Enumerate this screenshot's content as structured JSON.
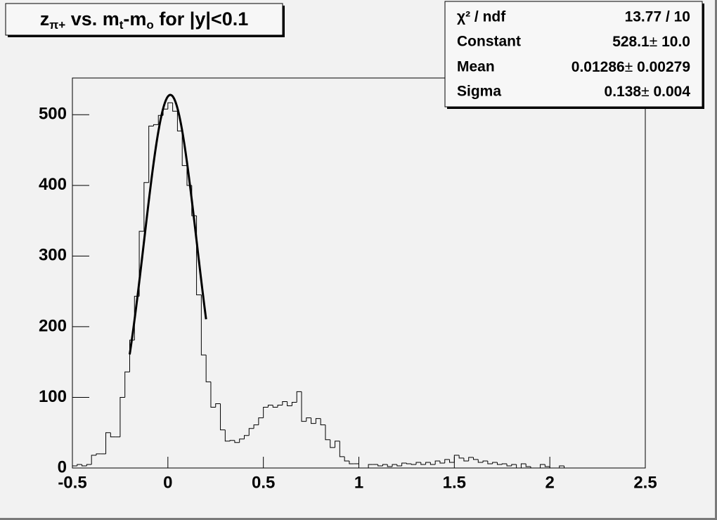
{
  "chart_data": {
    "type": "histogram",
    "title_parts": [
      {
        "text": "z"
      },
      {
        "text": "π+",
        "sub": true
      },
      {
        "text": " vs. m"
      },
      {
        "text": "t",
        "sub": true
      },
      {
        "text": "-m"
      },
      {
        "text": "o",
        "sub": true
      },
      {
        "text": " for |y|<0.1"
      }
    ],
    "bins": [
      -0.5,
      -0.475,
      -0.45,
      -0.425,
      -0.4,
      -0.375,
      -0.35,
      -0.325,
      -0.3,
      -0.275,
      -0.25,
      -0.225,
      -0.2,
      -0.175,
      -0.15,
      -0.125,
      -0.1,
      -0.075,
      -0.05,
      -0.025,
      0,
      0.025,
      0.05,
      0.075,
      0.1,
      0.125,
      0.15,
      0.175,
      0.2,
      0.225,
      0.25,
      0.275,
      0.3,
      0.325,
      0.35,
      0.375,
      0.4,
      0.425,
      0.45,
      0.475,
      0.5,
      0.525,
      0.55,
      0.575,
      0.6,
      0.625,
      0.65,
      0.675,
      0.7,
      0.725,
      0.75,
      0.775,
      0.8,
      0.825,
      0.85,
      0.875,
      0.9,
      0.925,
      0.95,
      0.975,
      1,
      1.025,
      1.05,
      1.075,
      1.1,
      1.125,
      1.15,
      1.175,
      1.2,
      1.225,
      1.25,
      1.275,
      1.3,
      1.325,
      1.35,
      1.375,
      1.4,
      1.425,
      1.45,
      1.475,
      1.5,
      1.525,
      1.55,
      1.575,
      1.6,
      1.625,
      1.65,
      1.675,
      1.7,
      1.725,
      1.75,
      1.775,
      1.8,
      1.825,
      1.85,
      1.875,
      1.9,
      1.925,
      1.95,
      1.975,
      2,
      2.025,
      2.05,
      2.075,
      2.1,
      2.125,
      2.15,
      2.175,
      2.2,
      2.225,
      2.25,
      2.275,
      2.3,
      2.325,
      2.35,
      2.375,
      2.4,
      2.425,
      2.45,
      2.475,
      2.5
    ],
    "values": [
      3,
      5,
      3,
      5,
      18,
      20,
      20,
      50,
      44,
      44,
      100,
      136,
      181,
      243,
      335,
      404,
      484,
      486,
      499,
      508,
      517,
      505,
      477,
      428,
      400,
      357,
      245,
      160,
      122,
      86,
      91,
      54,
      38,
      39,
      36,
      41,
      46,
      56,
      61,
      71,
      86,
      89,
      86,
      89,
      94,
      88,
      93,
      108,
      66,
      71,
      63,
      70,
      61,
      40,
      29,
      38,
      16,
      10,
      6,
      6,
      0,
      0,
      5,
      5,
      3,
      5,
      2,
      5,
      3,
      7,
      6,
      5,
      8,
      5,
      8,
      5,
      10,
      7,
      12,
      8,
      18,
      14,
      10,
      15,
      12,
      8,
      10,
      6,
      8,
      5,
      6,
      3,
      5,
      0,
      6,
      2,
      0,
      0,
      5,
      2,
      0,
      0,
      3,
      0,
      0,
      0,
      0,
      0,
      0,
      0,
      0,
      0,
      0,
      0,
      0,
      0,
      0,
      0,
      0,
      0
    ],
    "color": "#000000",
    "xlim": [
      -0.5,
      2.5
    ],
    "xticks": [
      -0.5,
      0,
      0.5,
      1,
      1.5,
      2,
      2.5
    ],
    "ylim": [
      0,
      552
    ],
    "yticks": [
      0,
      100,
      200,
      300,
      400,
      500
    ],
    "fit": {
      "range": [
        -0.2,
        0.2
      ],
      "color": "#000000",
      "pm": "±",
      "chi2": {
        "label": "χ² / ndf",
        "value": "13.77 / 10"
      },
      "params": [
        {
          "name": "Constant",
          "value": 528.1,
          "error": {
            "value": 10,
            "label": "10.0"
          }
        },
        {
          "name": "Mean",
          "value": 0.01286,
          "error": 0.00279
        },
        {
          "name": "Sigma",
          "value": 0.138,
          "error": 0.004
        }
      ]
    }
  }
}
